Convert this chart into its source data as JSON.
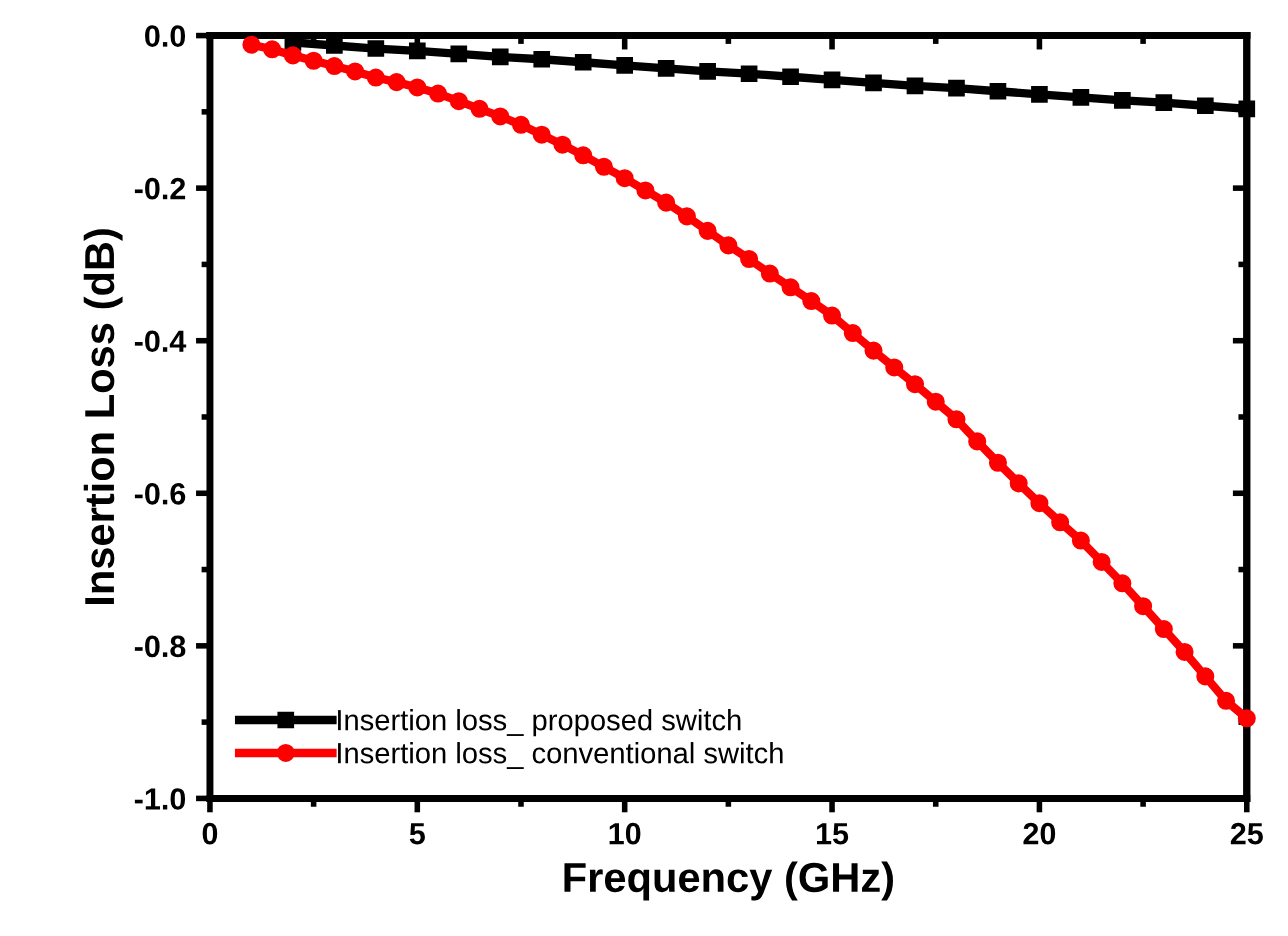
{
  "chart_data": {
    "type": "line",
    "xlabel": "Frequency (GHz)",
    "ylabel": "Insertion Loss (dB)",
    "xlim": [
      0,
      25
    ],
    "ylim": [
      -1.0,
      0.0
    ],
    "xticks": [
      0,
      5,
      10,
      15,
      20,
      25
    ],
    "yticks": [
      {
        "value": 0.0,
        "label": "0.0"
      },
      {
        "value": -0.2,
        "label": "-0.2"
      },
      {
        "value": -0.4,
        "label": "-0.4"
      },
      {
        "value": -0.6,
        "label": "-0.6"
      },
      {
        "value": -0.8,
        "label": "-0.8"
      },
      {
        "value": -1.0,
        "label": "-1.0"
      }
    ],
    "grid": false,
    "legend": "bottom left",
    "series": [
      {
        "name": "Insertion loss_ proposed switch",
        "color": "#000000",
        "marker": "square",
        "x": [
          2,
          3,
          4,
          5,
          6,
          7,
          8,
          9,
          10,
          11,
          12,
          13,
          14,
          15,
          16,
          17,
          18,
          19,
          20,
          21,
          22,
          23,
          24,
          25
        ],
        "values": [
          -0.009,
          -0.013,
          -0.017,
          -0.02,
          -0.024,
          -0.028,
          -0.031,
          -0.035,
          -0.039,
          -0.043,
          -0.047,
          -0.05,
          -0.054,
          -0.058,
          -0.062,
          -0.066,
          -0.069,
          -0.073,
          -0.077,
          -0.081,
          -0.085,
          -0.088,
          -0.092,
          -0.096
        ]
      },
      {
        "name": "Insertion loss_ conventional switch",
        "color": "#ff0000",
        "marker": "circle",
        "x": [
          1,
          1.5,
          2,
          2.5,
          3,
          3.5,
          4,
          4.5,
          5,
          5.5,
          6,
          6.5,
          7,
          7.5,
          8,
          8.5,
          9,
          9.5,
          10,
          10.5,
          11,
          11.5,
          12,
          12.5,
          13,
          13.5,
          14,
          14.5,
          15,
          15.5,
          16,
          16.5,
          17,
          17.5,
          18,
          18.5,
          19,
          19.5,
          20,
          20.5,
          21,
          21.5,
          22,
          22.5,
          23,
          23.5,
          24,
          24.5,
          25
        ],
        "values": [
          -0.012,
          -0.018,
          -0.026,
          -0.033,
          -0.04,
          -0.047,
          -0.055,
          -0.061,
          -0.068,
          -0.076,
          -0.086,
          -0.096,
          -0.106,
          -0.117,
          -0.13,
          -0.143,
          -0.157,
          -0.172,
          -0.187,
          -0.203,
          -0.219,
          -0.237,
          -0.256,
          -0.275,
          -0.293,
          -0.312,
          -0.33,
          -0.348,
          -0.367,
          -0.39,
          -0.413,
          -0.435,
          -0.457,
          -0.48,
          -0.503,
          -0.532,
          -0.56,
          -0.587,
          -0.613,
          -0.638,
          -0.662,
          -0.69,
          -0.718,
          -0.748,
          -0.778,
          -0.808,
          -0.84,
          -0.872,
          -0.895
        ]
      }
    ]
  }
}
